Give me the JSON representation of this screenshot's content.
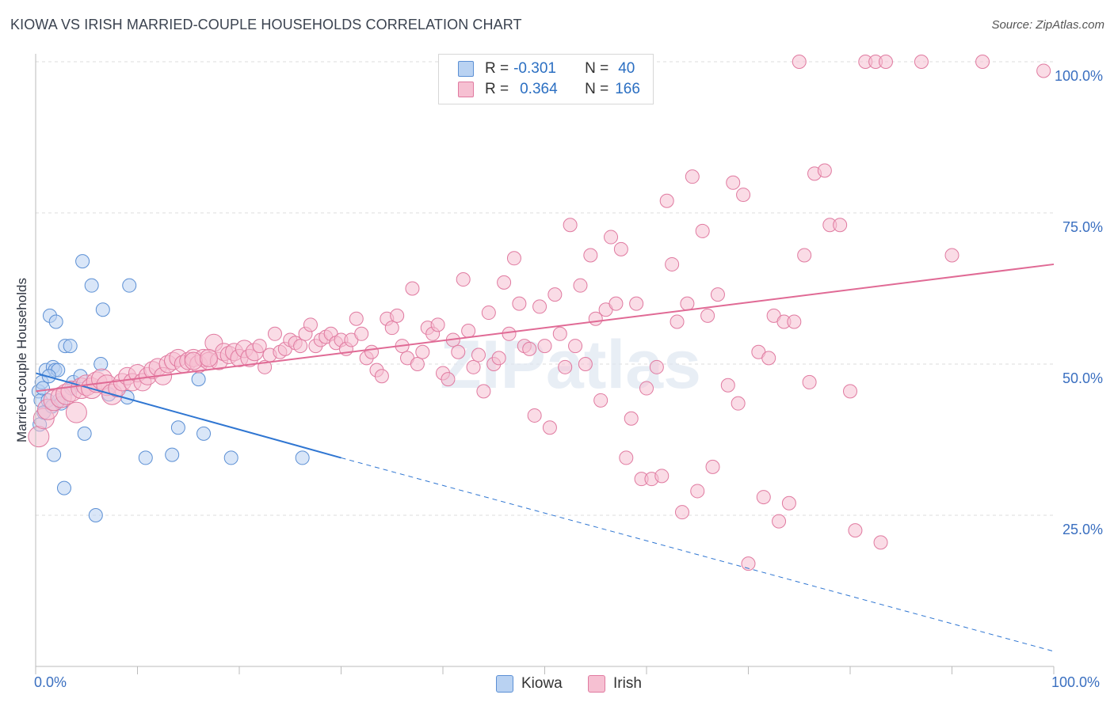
{
  "title": "KIOWA VS IRISH MARRIED-COUPLE HOUSEHOLDS CORRELATION CHART",
  "source": "Source: ZipAtlas.com",
  "watermark": "ZIPatlas",
  "legend": {
    "rows": [
      {
        "r_label": "R =",
        "r_value": "-0.301",
        "n_label": "N =",
        "n_value": "40",
        "color": "#5b8fd4",
        "fill": "#b9d2f2"
      },
      {
        "r_label": "R =",
        "r_value": "0.364",
        "n_label": "N =",
        "n_value": "166",
        "color": "#e07aa0",
        "fill": "#f6c0d2"
      }
    ]
  },
  "bottom_legend": [
    {
      "label": "Kiowa",
      "color": "#5b8fd4",
      "fill": "#b9d2f2"
    },
    {
      "label": "Irish",
      "color": "#e07aa0",
      "fill": "#f6c0d2"
    }
  ],
  "chart_data": {
    "type": "scatter",
    "title": "KIOWA VS IRISH MARRIED-COUPLE HOUSEHOLDS CORRELATION CHART",
    "xlabel": "",
    "ylabel": "Married-couple Households",
    "x_tick_labels": [
      "0.0%",
      "100.0%"
    ],
    "y_tick_labels": [
      "100.0%",
      "75.0%",
      "50.0%",
      "25.0%"
    ],
    "xlim": [
      0,
      100
    ],
    "ylim": [
      0,
      100
    ],
    "grid": true,
    "legend_position": "top-center",
    "series": [
      {
        "name": "Kiowa",
        "color": "#5b8fd4",
        "fill": "#b9d2f2",
        "points": [
          [
            0.3,
            45.5
          ],
          [
            0.4,
            40
          ],
          [
            0.5,
            44
          ],
          [
            0.6,
            47
          ],
          [
            0.7,
            46
          ],
          [
            0.8,
            42
          ],
          [
            1.0,
            49
          ],
          [
            1.2,
            44
          ],
          [
            1.4,
            58
          ],
          [
            1.6,
            43
          ],
          [
            1.7,
            49.5
          ],
          [
            1.8,
            35
          ],
          [
            1.9,
            49
          ],
          [
            2.0,
            57
          ],
          [
            2.2,
            49
          ],
          [
            2.3,
            44
          ],
          [
            2.8,
            29.5
          ],
          [
            2.9,
            53
          ],
          [
            3.4,
            53
          ],
          [
            3.7,
            47
          ],
          [
            4.4,
            48
          ],
          [
            4.8,
            38.5
          ],
          [
            4.6,
            67
          ],
          [
            5.5,
            63
          ],
          [
            5.9,
            25
          ],
          [
            6.4,
            50
          ],
          [
            6.6,
            59
          ],
          [
            7.2,
            45
          ],
          [
            9.2,
            63
          ],
          [
            9.0,
            44.5
          ],
          [
            10.8,
            34.5
          ],
          [
            13.4,
            35
          ],
          [
            14.0,
            39.5
          ],
          [
            16.0,
            47.5
          ],
          [
            16.5,
            38.5
          ],
          [
            19.2,
            34.5
          ],
          [
            26.2,
            34.5
          ],
          [
            2.5,
            43.5
          ],
          [
            3.5,
            46
          ],
          [
            1.3,
            48
          ]
        ],
        "trend": {
          "x": [
            0,
            30,
            100
          ],
          "y": [
            48.5,
            34.5,
            2.5
          ]
        }
      },
      {
        "name": "Irish",
        "color": "#e07aa0",
        "fill": "#f6c0d2",
        "points": [
          [
            0.3,
            38
          ],
          [
            0.8,
            41
          ],
          [
            1.2,
            42.5
          ],
          [
            1.8,
            44
          ],
          [
            2.5,
            44.5
          ],
          [
            3.0,
            45
          ],
          [
            3.5,
            45.5
          ],
          [
            4.0,
            42
          ],
          [
            4.5,
            46
          ],
          [
            5.0,
            46.5
          ],
          [
            5.5,
            46
          ],
          [
            6.0,
            47
          ],
          [
            6.5,
            47.5
          ],
          [
            7.0,
            46.5
          ],
          [
            7.5,
            45
          ],
          [
            8.0,
            46
          ],
          [
            8.5,
            47
          ],
          [
            9.0,
            48
          ],
          [
            9.5,
            47
          ],
          [
            10.0,
            48.5
          ],
          [
            10.5,
            47
          ],
          [
            11.0,
            48
          ],
          [
            11.5,
            49
          ],
          [
            12.0,
            49.5
          ],
          [
            12.5,
            48
          ],
          [
            13.0,
            50
          ],
          [
            13.5,
            50.5
          ],
          [
            14.0,
            51
          ],
          [
            14.5,
            50
          ],
          [
            15.0,
            50.5
          ],
          [
            15.5,
            51
          ],
          [
            16.0,
            50
          ],
          [
            16.5,
            51
          ],
          [
            17.0,
            50.5
          ],
          [
            17.5,
            53.5
          ],
          [
            18.0,
            50.5
          ],
          [
            18.5,
            52
          ],
          [
            19.0,
            51.5
          ],
          [
            19.5,
            52
          ],
          [
            20.0,
            51
          ],
          [
            20.5,
            52.5
          ],
          [
            21.0,
            51
          ],
          [
            21.5,
            52
          ],
          [
            22.0,
            53
          ],
          [
            22.5,
            49.5
          ],
          [
            23.0,
            51.5
          ],
          [
            23.5,
            55
          ],
          [
            24.0,
            52
          ],
          [
            24.5,
            52.5
          ],
          [
            25.0,
            54
          ],
          [
            25.5,
            53.5
          ],
          [
            26.0,
            53
          ],
          [
            26.5,
            55
          ],
          [
            27.0,
            56.5
          ],
          [
            27.5,
            53
          ],
          [
            28.0,
            54
          ],
          [
            28.5,
            54.5
          ],
          [
            29.0,
            55
          ],
          [
            29.5,
            53.5
          ],
          [
            30.0,
            54
          ],
          [
            30.5,
            52.5
          ],
          [
            31.0,
            54
          ],
          [
            31.5,
            57.5
          ],
          [
            32.0,
            55
          ],
          [
            32.5,
            51
          ],
          [
            33.0,
            52
          ],
          [
            33.5,
            49
          ],
          [
            34.0,
            48
          ],
          [
            34.5,
            57.5
          ],
          [
            35.0,
            56
          ],
          [
            35.5,
            58
          ],
          [
            36.0,
            53
          ],
          [
            36.5,
            51
          ],
          [
            37.0,
            62.5
          ],
          [
            37.5,
            50
          ],
          [
            38.0,
            52
          ],
          [
            38.5,
            56
          ],
          [
            39.0,
            55
          ],
          [
            39.5,
            56.5
          ],
          [
            40.0,
            48.5
          ],
          [
            40.5,
            47.5
          ],
          [
            41.0,
            54
          ],
          [
            41.5,
            52
          ],
          [
            42.0,
            64
          ],
          [
            42.5,
            55.5
          ],
          [
            43.0,
            49.5
          ],
          [
            43.5,
            51.5
          ],
          [
            44.0,
            45.5
          ],
          [
            44.5,
            58.5
          ],
          [
            45.0,
            50
          ],
          [
            45.5,
            51
          ],
          [
            46.0,
            63.5
          ],
          [
            46.5,
            55
          ],
          [
            47.0,
            67.5
          ],
          [
            47.5,
            60
          ],
          [
            48.0,
            53
          ],
          [
            48.5,
            52.5
          ],
          [
            49.0,
            41.5
          ],
          [
            49.5,
            59.5
          ],
          [
            50.0,
            53
          ],
          [
            50.5,
            39.5
          ],
          [
            51.0,
            61.5
          ],
          [
            51.5,
            55
          ],
          [
            52.0,
            49.5
          ],
          [
            52.5,
            73
          ],
          [
            53.0,
            53
          ],
          [
            53.5,
            63
          ],
          [
            54.0,
            50
          ],
          [
            54.5,
            68
          ],
          [
            55.0,
            57.5
          ],
          [
            55.5,
            44
          ],
          [
            56.0,
            59
          ],
          [
            56.5,
            71
          ],
          [
            57.0,
            60
          ],
          [
            57.5,
            69
          ],
          [
            58.0,
            34.5
          ],
          [
            58.5,
            41
          ],
          [
            59.0,
            60
          ],
          [
            59.5,
            31
          ],
          [
            60.0,
            46
          ],
          [
            60.5,
            31
          ],
          [
            61.0,
            49.5
          ],
          [
            61.5,
            31.5
          ],
          [
            62.0,
            77
          ],
          [
            62.5,
            66.5
          ],
          [
            63.0,
            57
          ],
          [
            63.5,
            25.5
          ],
          [
            64.0,
            60
          ],
          [
            64.5,
            81
          ],
          [
            65.0,
            29
          ],
          [
            65.5,
            72
          ],
          [
            66.0,
            58
          ],
          [
            66.5,
            33
          ],
          [
            67.0,
            61.5
          ],
          [
            68.0,
            46.5
          ],
          [
            68.5,
            80
          ],
          [
            69.0,
            43.5
          ],
          [
            69.5,
            78
          ],
          [
            70.0,
            17
          ],
          [
            71.0,
            52
          ],
          [
            71.5,
            28
          ],
          [
            72.0,
            51
          ],
          [
            72.5,
            58
          ],
          [
            73.0,
            24
          ],
          [
            73.5,
            57
          ],
          [
            74.0,
            27
          ],
          [
            74.5,
            57
          ],
          [
            75.0,
            100
          ],
          [
            75.5,
            68
          ],
          [
            76.0,
            47
          ],
          [
            76.5,
            81.5
          ],
          [
            77.5,
            82
          ],
          [
            78.0,
            73
          ],
          [
            79.0,
            73
          ],
          [
            80.0,
            45.5
          ],
          [
            80.5,
            22.5
          ],
          [
            81.5,
            100
          ],
          [
            82.5,
            100
          ],
          [
            83.5,
            100
          ],
          [
            83.0,
            20.5
          ],
          [
            87.0,
            100
          ],
          [
            90.0,
            68
          ],
          [
            93.0,
            100
          ],
          [
            99.0,
            98.5
          ],
          [
            15.5,
            50.5
          ],
          [
            17.0,
            51
          ]
        ],
        "trend": {
          "x": [
            0,
            100
          ],
          "y": [
            45.5,
            66.5
          ]
        }
      }
    ]
  }
}
